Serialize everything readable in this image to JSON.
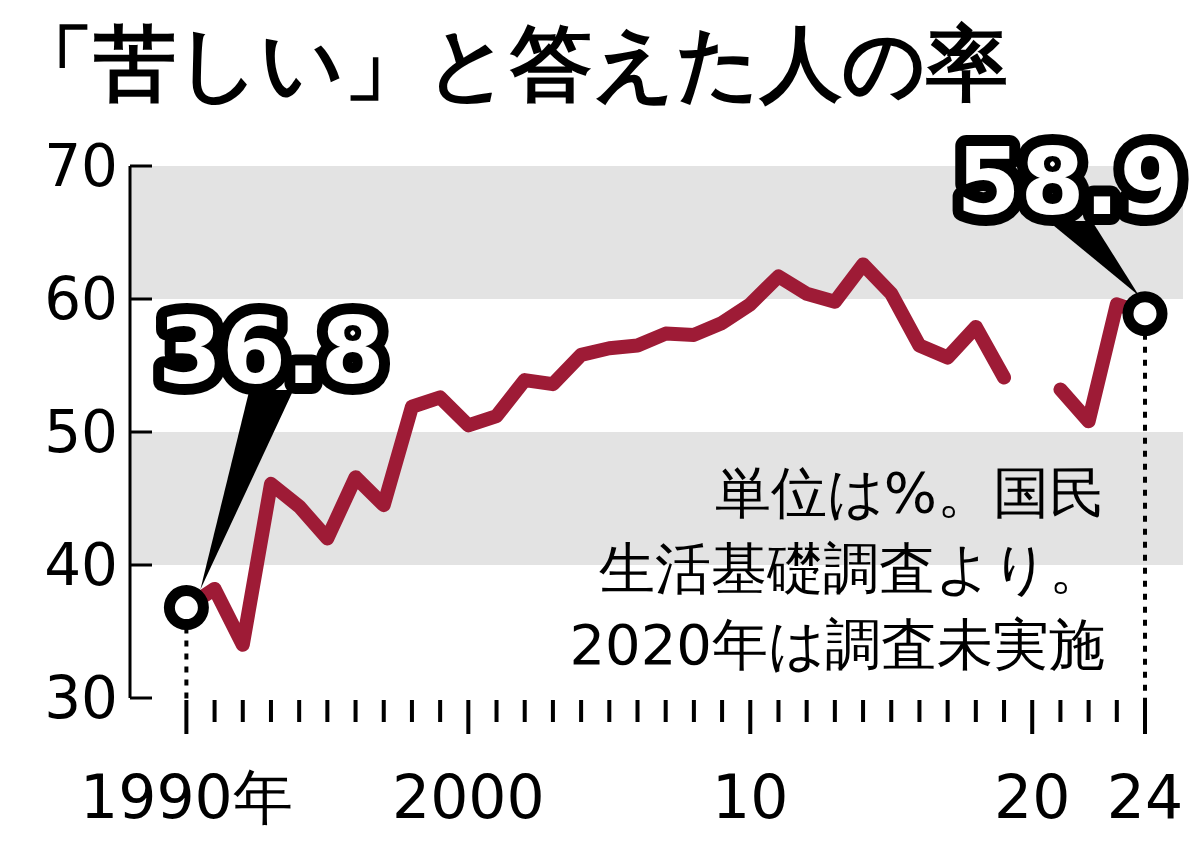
{
  "chart_data": {
    "type": "line",
    "title": "「苦しい」と答えた人の率",
    "x": [
      1990,
      1991,
      1992,
      1993,
      1994,
      1995,
      1996,
      1997,
      1998,
      1999,
      2000,
      2001,
      2002,
      2003,
      2004,
      2005,
      2006,
      2007,
      2008,
      2009,
      2010,
      2011,
      2012,
      2013,
      2014,
      2015,
      2016,
      2017,
      2018,
      2019,
      2020,
      2021,
      2022,
      2023,
      2024
    ],
    "series": [
      {
        "color": "#9e1b36",
        "values": [
          36.8,
          38.2,
          34.0,
          46.1,
          44.4,
          42.0,
          46.6,
          44.5,
          51.9,
          52.6,
          50.5,
          51.2,
          53.9,
          53.6,
          55.8,
          56.3,
          56.5,
          57.4,
          57.3,
          58.2,
          59.6,
          61.7,
          60.4,
          59.8,
          62.6,
          60.4,
          56.5,
          55.6,
          57.9,
          54.1,
          null,
          53.2,
          50.8,
          59.6,
          58.9
        ],
        "value_labels": [
          "36.8",
          null,
          null,
          null,
          null,
          null,
          null,
          null,
          null,
          null,
          null,
          null,
          null,
          null,
          null,
          null,
          null,
          null,
          null,
          null,
          null,
          null,
          null,
          null,
          null,
          null,
          null,
          null,
          null,
          null,
          null,
          null,
          null,
          null,
          "58.9"
        ]
      }
    ],
    "xlim": [
      1988,
      2024
    ],
    "ylim": [
      30,
      70
    ],
    "yticks": [
      30,
      40,
      50,
      60,
      70
    ],
    "xticks": [
      {
        "value": 1990,
        "label": "1990年"
      },
      {
        "value": 2000,
        "label": "2000"
      },
      {
        "value": 2010,
        "label": "10"
      },
      {
        "value": 2020,
        "label": "20"
      },
      {
        "value": 2024,
        "label": "24"
      }
    ],
    "bands": [
      {
        "axis": "y",
        "from": 40,
        "to": 50,
        "color": "#e3e3e3"
      },
      {
        "axis": "y",
        "from": 60,
        "to": 70,
        "color": "#e3e3e3"
      }
    ],
    "ref_lines": [
      {
        "axis": "x",
        "value": 1990,
        "color": "#000000",
        "line_style": "dotted"
      },
      {
        "axis": "x",
        "value": 2024,
        "color": "#000000",
        "line_style": "dotted"
      }
    ],
    "annotations": [
      "単位は%。国民",
      "生活基礎調査より。",
      "2020年は調査未実施"
    ],
    "line_style": "solid"
  }
}
